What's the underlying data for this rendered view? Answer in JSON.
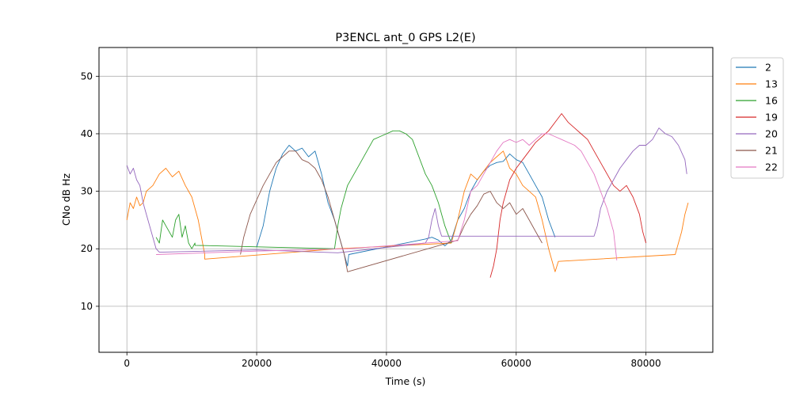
{
  "chart_data": {
    "type": "line",
    "title": "P3ENCL ant_0 GPS L2(E)",
    "xlabel": "Time (s)",
    "ylabel": "CNo dB Hz",
    "xlim": [
      -4300,
      90300
    ],
    "ylim": [
      2,
      55
    ],
    "xticks": [
      0,
      20000,
      40000,
      60000,
      80000
    ],
    "xtick_labels": [
      "0",
      "20000",
      "40000",
      "60000",
      "80000"
    ],
    "yticks": [
      10,
      20,
      30,
      40,
      50
    ],
    "ytick_labels": [
      "10",
      "20",
      "30",
      "40",
      "50"
    ],
    "grid": true,
    "legend_position": "outside-top-right",
    "series": [
      {
        "name": "2",
        "color": "#1f77b4",
        "points": [
          [
            20000,
            20.3
          ],
          [
            21000,
            24
          ],
          [
            22000,
            30
          ],
          [
            23000,
            34
          ],
          [
            24000,
            36.5
          ],
          [
            25000,
            38
          ],
          [
            26000,
            37
          ],
          [
            27000,
            37.5
          ],
          [
            28000,
            36
          ],
          [
            29000,
            37
          ],
          [
            30000,
            33
          ],
          [
            31000,
            28
          ],
          [
            32000,
            25
          ],
          [
            33000,
            21
          ],
          [
            34000,
            17
          ],
          [
            34200,
            19
          ],
          [
            46000,
            21.7
          ],
          [
            47000,
            22
          ],
          [
            48000,
            21.5
          ],
          [
            49000,
            20.5
          ],
          [
            50000,
            21.5
          ],
          [
            51000,
            25
          ],
          [
            52000,
            27
          ],
          [
            53000,
            30
          ],
          [
            54000,
            32
          ],
          [
            55000,
            33.5
          ],
          [
            56000,
            34.5
          ],
          [
            57000,
            35
          ],
          [
            58000,
            35.2
          ],
          [
            59000,
            36.5
          ],
          [
            60000,
            35.5
          ],
          [
            61000,
            35
          ],
          [
            62000,
            33
          ],
          [
            63000,
            31
          ],
          [
            64000,
            29
          ],
          [
            65000,
            25
          ],
          [
            66000,
            22
          ]
        ]
      },
      {
        "name": "13",
        "color": "#ff7f0e",
        "points": [
          [
            0,
            25
          ],
          [
            500,
            28
          ],
          [
            1000,
            27
          ],
          [
            1500,
            29
          ],
          [
            2000,
            27.5
          ],
          [
            2500,
            28
          ],
          [
            3000,
            30
          ],
          [
            4000,
            31
          ],
          [
            5000,
            33
          ],
          [
            6000,
            34
          ],
          [
            7000,
            32.5
          ],
          [
            8000,
            33.5
          ],
          [
            9000,
            31
          ],
          [
            10000,
            29
          ],
          [
            11000,
            25
          ],
          [
            12000,
            19
          ],
          [
            12000,
            18.2
          ],
          [
            32500,
            20
          ],
          [
            50000,
            21
          ],
          [
            51000,
            25
          ],
          [
            52000,
            30
          ],
          [
            53000,
            33
          ],
          [
            54000,
            32
          ],
          [
            55000,
            33.5
          ],
          [
            56000,
            35
          ],
          [
            57000,
            36
          ],
          [
            58000,
            37
          ],
          [
            59000,
            34
          ],
          [
            60000,
            33
          ],
          [
            61000,
            31
          ],
          [
            62000,
            30
          ],
          [
            63000,
            29
          ],
          [
            64000,
            25
          ],
          [
            65000,
            20
          ],
          [
            66000,
            16
          ],
          [
            66500,
            17.8
          ],
          [
            84500,
            19
          ],
          [
            85000,
            21
          ],
          [
            85500,
            23
          ],
          [
            86000,
            26
          ],
          [
            86500,
            28
          ]
        ]
      },
      {
        "name": "16",
        "color": "#2ca02c",
        "points": [
          [
            4500,
            22
          ],
          [
            5000,
            21
          ],
          [
            5500,
            25
          ],
          [
            6000,
            24
          ],
          [
            7000,
            22
          ],
          [
            7500,
            25
          ],
          [
            8000,
            26
          ],
          [
            8500,
            22
          ],
          [
            9000,
            24
          ],
          [
            9500,
            21
          ],
          [
            10000,
            20
          ],
          [
            10500,
            21
          ],
          [
            10500,
            20.6
          ],
          [
            32000,
            20
          ],
          [
            32500,
            24
          ],
          [
            33000,
            27
          ],
          [
            34000,
            31
          ],
          [
            35000,
            33
          ],
          [
            36000,
            35
          ],
          [
            37000,
            37
          ],
          [
            38000,
            39
          ],
          [
            39000,
            39.5
          ],
          [
            40000,
            40
          ],
          [
            41000,
            40.5
          ],
          [
            42000,
            40.5
          ],
          [
            43000,
            40
          ],
          [
            44000,
            39
          ],
          [
            45000,
            36
          ],
          [
            46000,
            33
          ],
          [
            47000,
            31
          ],
          [
            48000,
            28
          ],
          [
            49000,
            24
          ],
          [
            50000,
            21
          ]
        ]
      },
      {
        "name": "19",
        "color": "#d62728",
        "points": [
          [
            56000,
            15
          ],
          [
            56500,
            17
          ],
          [
            57000,
            20
          ],
          [
            57500,
            25
          ],
          [
            58000,
            28
          ],
          [
            58500,
            30
          ],
          [
            59000,
            32
          ],
          [
            60000,
            34
          ],
          [
            61000,
            35.5
          ],
          [
            62000,
            37
          ],
          [
            63000,
            38.5
          ],
          [
            64000,
            39.5
          ],
          [
            65000,
            40.5
          ],
          [
            66000,
            42
          ],
          [
            67000,
            43.5
          ],
          [
            68000,
            42
          ],
          [
            69000,
            41
          ],
          [
            70000,
            40
          ],
          [
            71000,
            39
          ],
          [
            72000,
            37
          ],
          [
            73000,
            35
          ],
          [
            74000,
            33
          ],
          [
            75000,
            31
          ],
          [
            76000,
            30
          ],
          [
            77000,
            31
          ],
          [
            78000,
            29
          ],
          [
            79000,
            26
          ],
          [
            79500,
            23
          ],
          [
            80000,
            21
          ]
        ]
      },
      {
        "name": "20",
        "color": "#9467bd",
        "points": [
          [
            0,
            34.5
          ],
          [
            500,
            33
          ],
          [
            1000,
            34
          ],
          [
            1500,
            32
          ],
          [
            2000,
            31
          ],
          [
            2500,
            28
          ],
          [
            3000,
            26
          ],
          [
            3500,
            24
          ],
          [
            4000,
            22
          ],
          [
            4500,
            20
          ],
          [
            5000,
            19.4
          ],
          [
            20000,
            19.8
          ],
          [
            32500,
            19.3
          ],
          [
            46000,
            21
          ],
          [
            46500,
            22
          ],
          [
            47000,
            25
          ],
          [
            47500,
            27
          ],
          [
            48000,
            24
          ],
          [
            48500,
            22.2
          ],
          [
            72000,
            22.2
          ],
          [
            72500,
            24
          ],
          [
            73000,
            27
          ],
          [
            74000,
            30
          ],
          [
            75000,
            32
          ],
          [
            76000,
            34
          ],
          [
            77000,
            35.5
          ],
          [
            78000,
            37
          ],
          [
            79000,
            38
          ],
          [
            80000,
            38
          ],
          [
            81000,
            39
          ],
          [
            82000,
            41
          ],
          [
            83000,
            40
          ],
          [
            84000,
            39.5
          ],
          [
            85000,
            38
          ],
          [
            86000,
            35.5
          ],
          [
            86300,
            33
          ]
        ]
      },
      {
        "name": "21",
        "color": "#8c564b",
        "points": [
          [
            17500,
            19
          ],
          [
            18000,
            22
          ],
          [
            19000,
            26
          ],
          [
            20000,
            28.5
          ],
          [
            21000,
            31
          ],
          [
            22000,
            33
          ],
          [
            23000,
            35
          ],
          [
            24000,
            36
          ],
          [
            25000,
            37
          ],
          [
            26000,
            37
          ],
          [
            27000,
            35.5
          ],
          [
            28000,
            35
          ],
          [
            29000,
            34
          ],
          [
            30000,
            32
          ],
          [
            31000,
            29
          ],
          [
            32000,
            25
          ],
          [
            33000,
            21
          ],
          [
            33500,
            19
          ],
          [
            34000,
            16
          ],
          [
            51000,
            21.5
          ],
          [
            52000,
            24
          ],
          [
            53000,
            26
          ],
          [
            54000,
            27.5
          ],
          [
            55000,
            29.5
          ],
          [
            56000,
            30
          ],
          [
            57000,
            28
          ],
          [
            58000,
            27
          ],
          [
            59000,
            28
          ],
          [
            60000,
            26
          ],
          [
            61000,
            27
          ],
          [
            62000,
            25
          ],
          [
            63000,
            23
          ],
          [
            64000,
            21
          ]
        ]
      },
      {
        "name": "22",
        "color": "#e377c2",
        "points": [
          [
            4500,
            19
          ],
          [
            20000,
            19.6
          ],
          [
            34000,
            20
          ],
          [
            51000,
            21.4
          ],
          [
            52000,
            25
          ],
          [
            53000,
            30
          ],
          [
            54000,
            31
          ],
          [
            55000,
            33
          ],
          [
            56000,
            35
          ],
          [
            57000,
            37
          ],
          [
            58000,
            38.5
          ],
          [
            59000,
            39
          ],
          [
            60000,
            38.5
          ],
          [
            61000,
            39
          ],
          [
            62000,
            38
          ],
          [
            63000,
            39
          ],
          [
            64000,
            40
          ],
          [
            65000,
            40
          ],
          [
            66000,
            39.5
          ],
          [
            67000,
            39
          ],
          [
            68000,
            38.5
          ],
          [
            69000,
            38
          ],
          [
            70000,
            37
          ],
          [
            71000,
            35
          ],
          [
            72000,
            33
          ],
          [
            73000,
            30
          ],
          [
            74000,
            27
          ],
          [
            75000,
            23
          ],
          [
            75500,
            18
          ]
        ]
      }
    ]
  }
}
